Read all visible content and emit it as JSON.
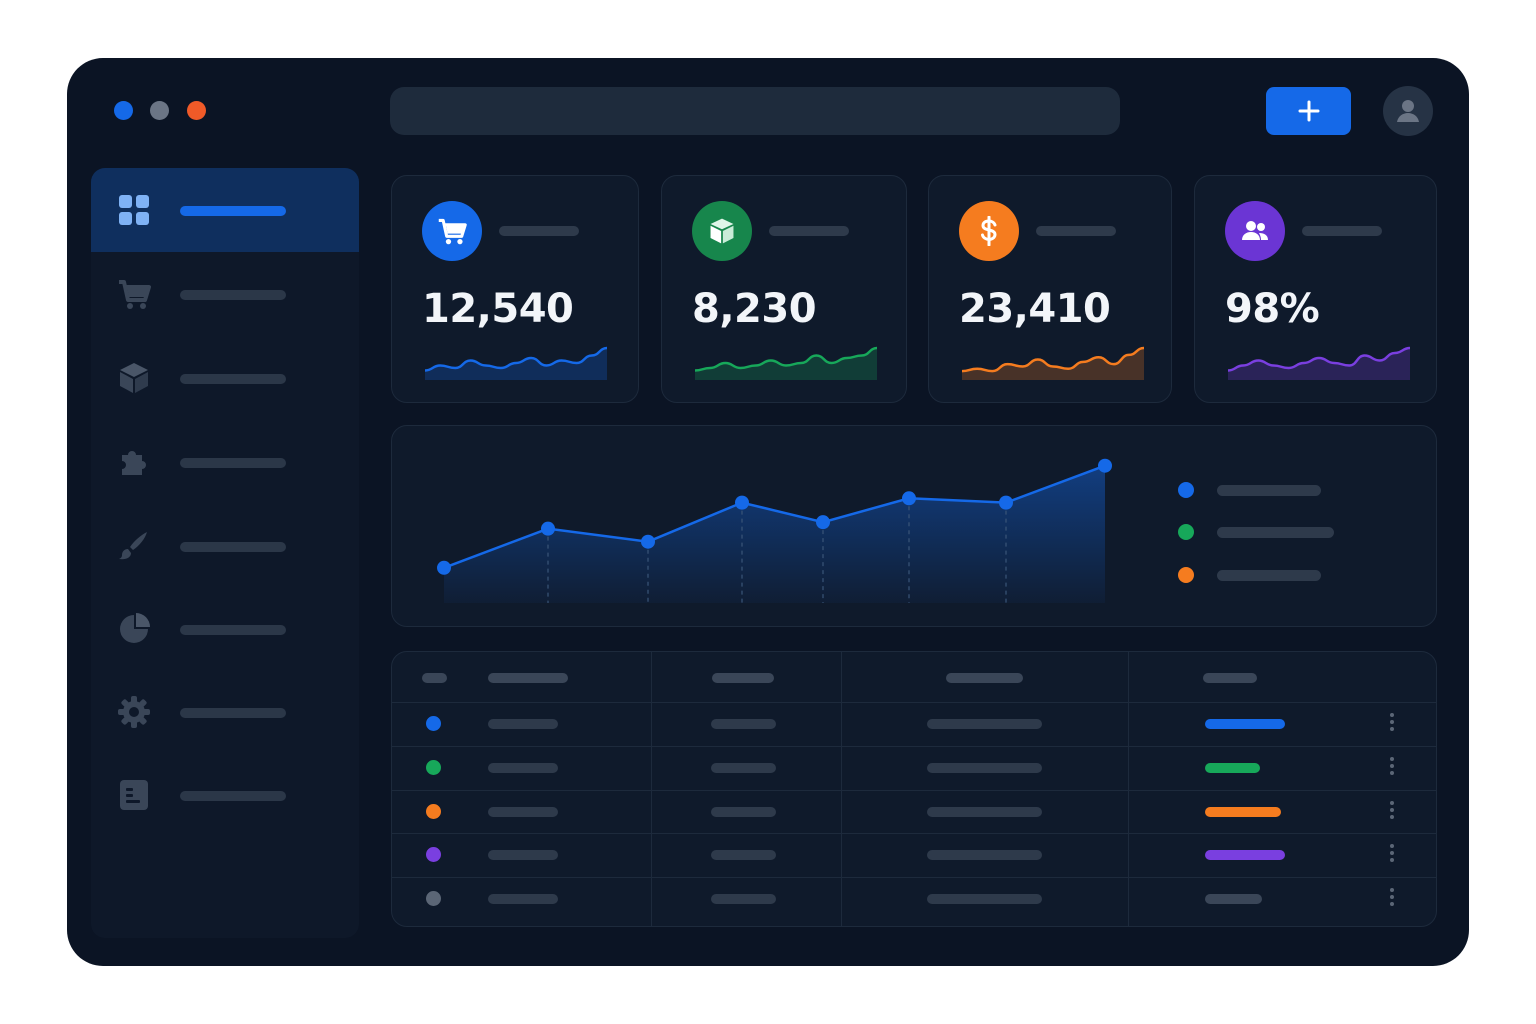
{
  "window": {
    "controls": [
      {
        "name": "blue",
        "color": "#1569e8"
      },
      {
        "name": "gray",
        "color": "#6b7585"
      },
      {
        "name": "orange",
        "color": "#f05a28"
      }
    ]
  },
  "header": {
    "search": {
      "placeholder": ""
    },
    "add_button": {
      "icon": "plus-icon",
      "color": "#1569e8"
    },
    "avatar": {
      "icon": "user-icon"
    }
  },
  "sidebar": {
    "items": [
      {
        "icon": "dashboard-grid-icon",
        "active": true
      },
      {
        "icon": "shopping-cart-icon",
        "active": false
      },
      {
        "icon": "box-icon",
        "active": false
      },
      {
        "icon": "puzzle-icon",
        "active": false
      },
      {
        "icon": "brush-icon",
        "active": false
      },
      {
        "icon": "pie-chart-icon",
        "active": false
      },
      {
        "icon": "gear-icon",
        "active": false
      },
      {
        "icon": "document-icon",
        "active": false
      }
    ]
  },
  "stats": [
    {
      "icon": "shopping-cart-icon",
      "value": "12,540",
      "color": "#1569e8",
      "sparkline": [
        3,
        5,
        4,
        7,
        5,
        4,
        6,
        8,
        5,
        7,
        6,
        9,
        12
      ]
    },
    {
      "icon": "box-icon",
      "value": "8,230",
      "color": "#17a85a",
      "sparkline": [
        3,
        4,
        6,
        4,
        5,
        7,
        5,
        6,
        9,
        6,
        8,
        9,
        12
      ]
    },
    {
      "icon": "dollar-icon",
      "value": "23,410",
      "color": "#f57c1f",
      "sparkline": [
        3,
        4,
        3,
        6,
        5,
        8,
        5,
        4,
        7,
        9,
        6,
        10,
        13
      ]
    },
    {
      "icon": "users-icon",
      "value": "98%",
      "color": "#7a3fe0",
      "sparkline": [
        3,
        5,
        7,
        5,
        4,
        6,
        8,
        6,
        5,
        9,
        7,
        10,
        12
      ]
    }
  ],
  "chart": {
    "series_color": "#1569e8",
    "legend": [
      {
        "color": "#1569e8"
      },
      {
        "color": "#17a85a"
      },
      {
        "color": "#f57c1f"
      }
    ]
  },
  "chart_data": {
    "type": "area",
    "x": [
      1,
      2,
      3,
      4,
      5,
      6,
      7,
      8
    ],
    "values": [
      13,
      31,
      25,
      43,
      34,
      45,
      43,
      60
    ],
    "ylim": [
      0,
      70
    ],
    "grid": false,
    "legend_position": "right"
  },
  "table": {
    "rows": [
      {
        "color": "#1569e8",
        "status_color": "#1569e8",
        "status_level": 1.0
      },
      {
        "color": "#17a85a",
        "status_color": "#17a85a",
        "status_level": 0.69
      },
      {
        "color": "#f57c1f",
        "status_color": "#f57c1f",
        "status_level": 0.95
      },
      {
        "color": "#7a3fe0",
        "status_color": "#7a3fe0",
        "status_level": 1.0
      },
      {
        "color": "#5b6676",
        "status_color": "#3a4658",
        "status_level": 0.71
      }
    ]
  }
}
